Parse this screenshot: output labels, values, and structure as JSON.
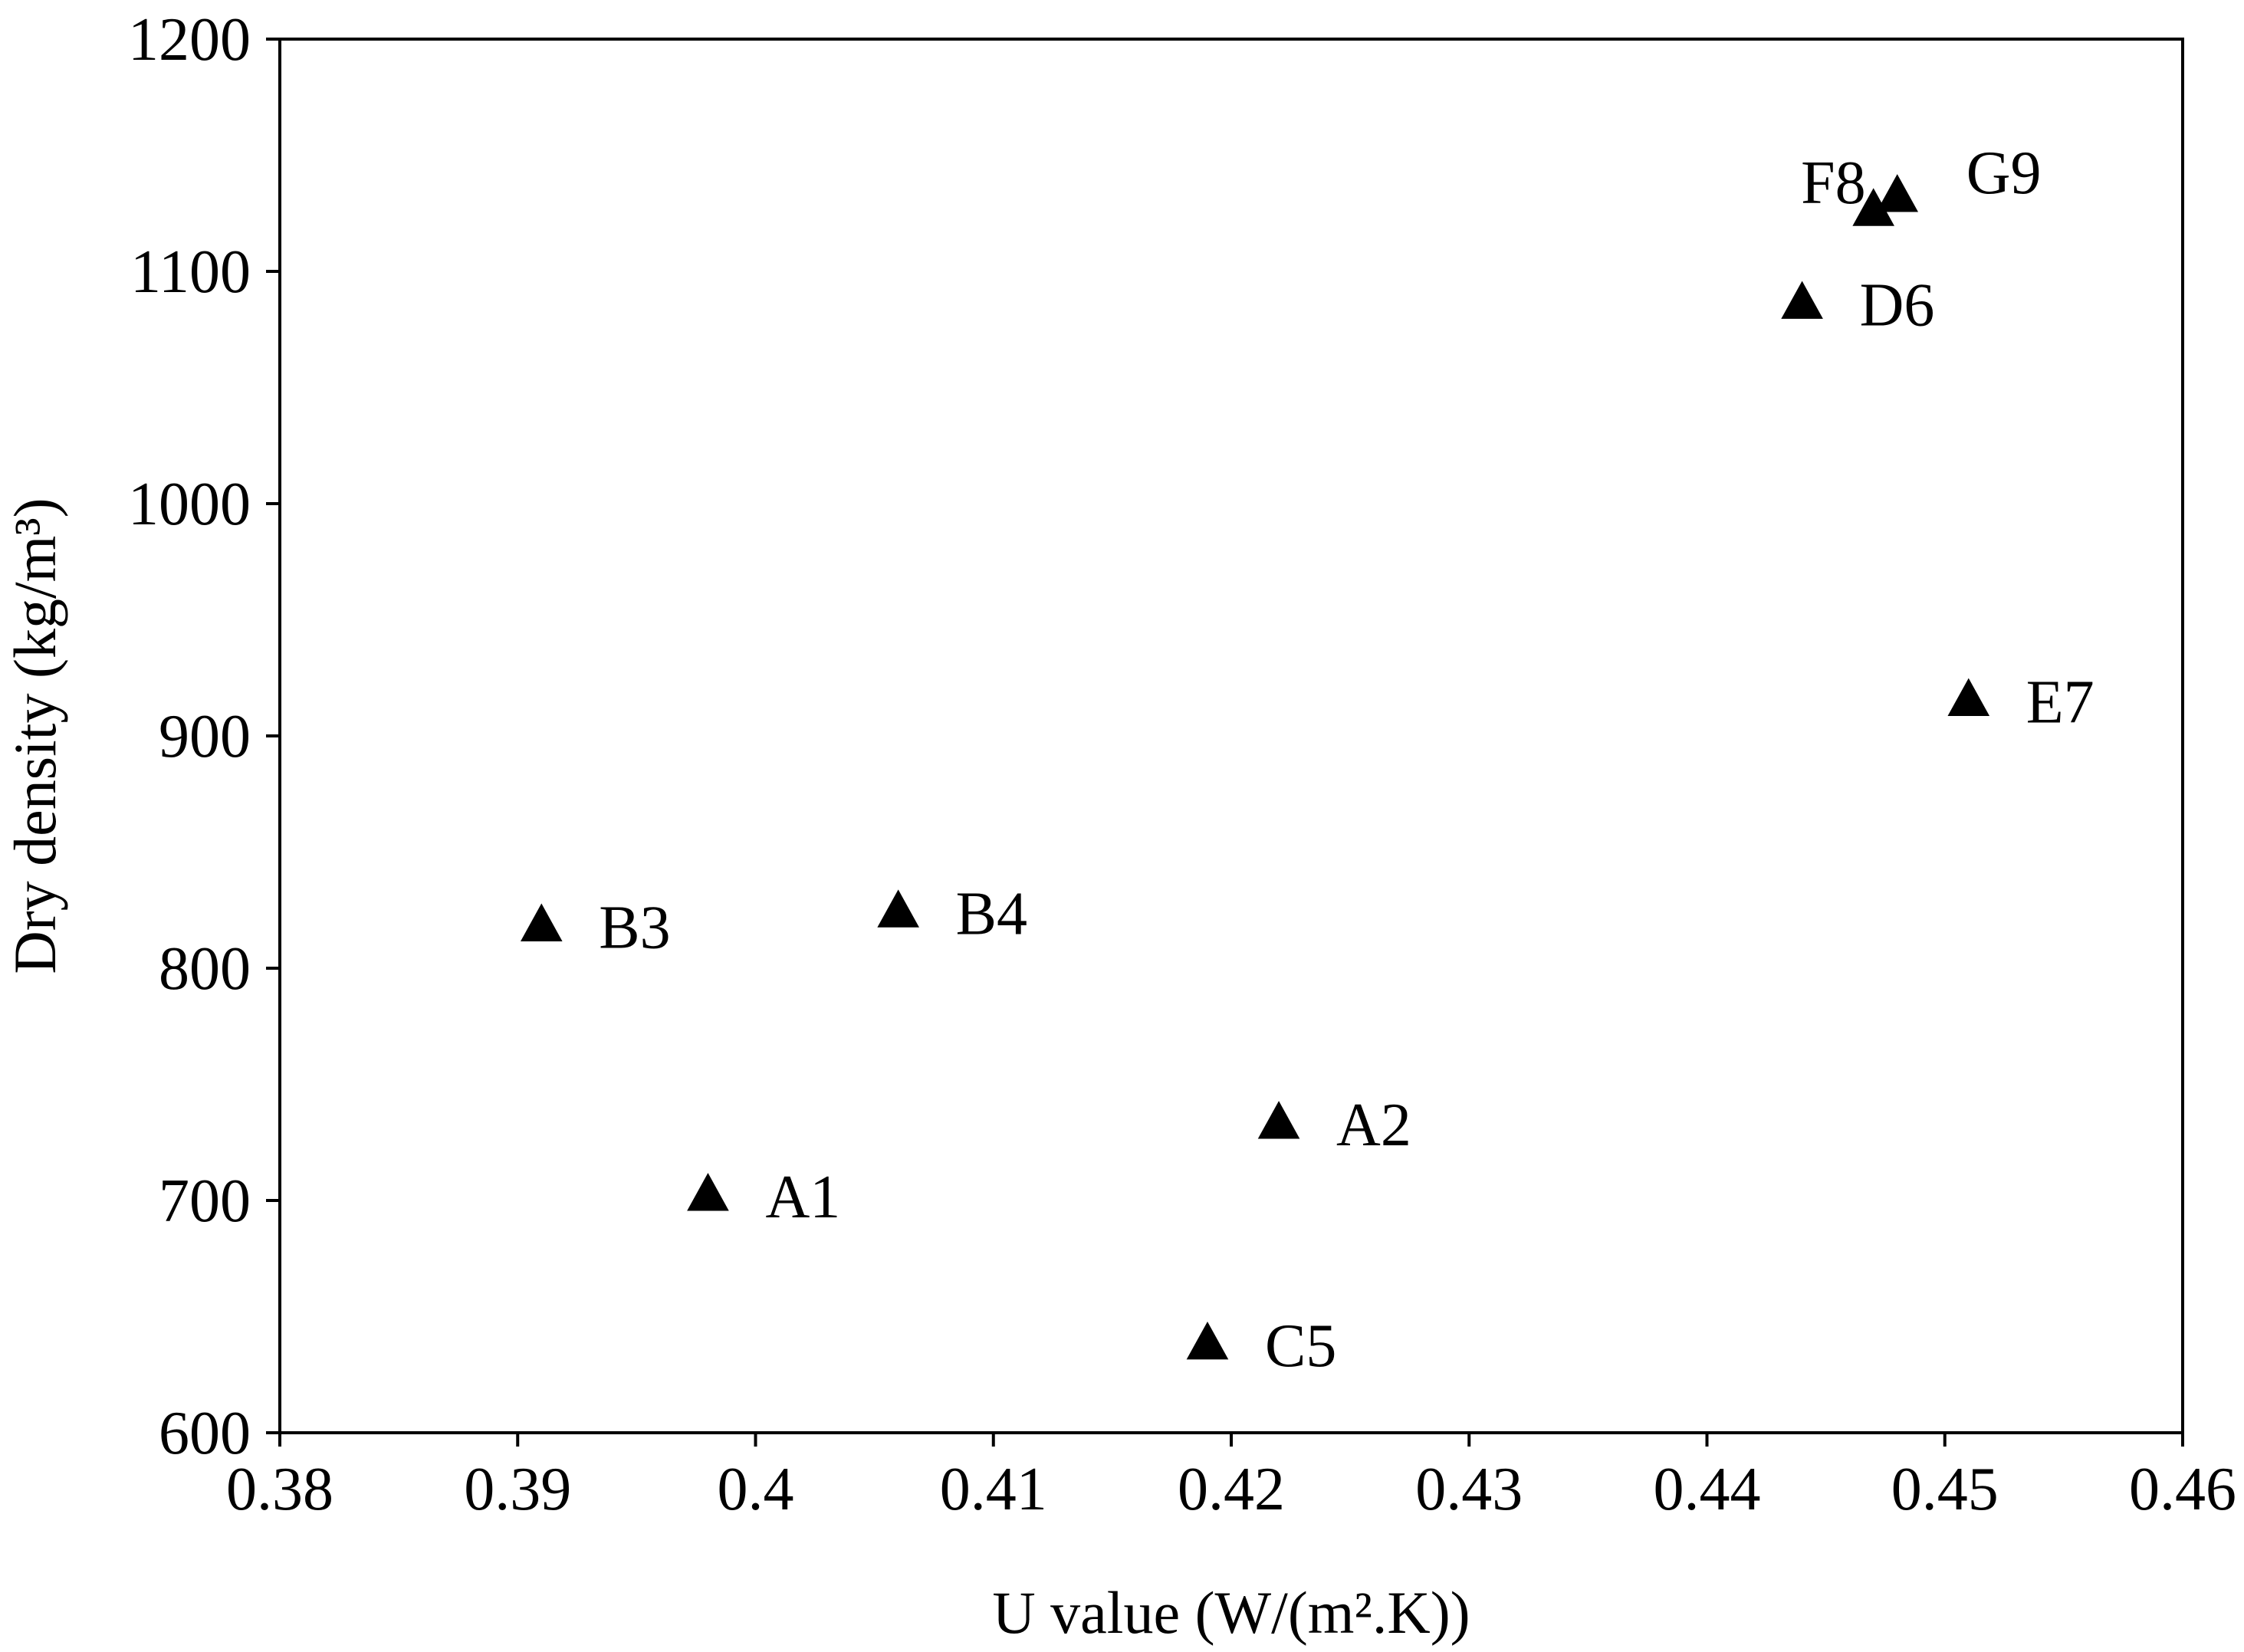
{
  "chart_data": {
    "type": "scatter",
    "xlabel": "U value (W/(m².K))",
    "ylabel": "Dry density (kg/m³)",
    "xlim": [
      0.38,
      0.46
    ],
    "ylim": [
      600,
      1200
    ],
    "xticks": [
      "0.38",
      "0.39",
      "0.4",
      "0.41",
      "0.42",
      "0.43",
      "0.44",
      "0.45",
      "0.46"
    ],
    "yticks": [
      "600",
      "700",
      "800",
      "900",
      "1000",
      "1100",
      "1200"
    ],
    "grid": false,
    "marker": "filled-triangle",
    "marker_color": "#000000",
    "points": [
      {
        "label": "A1",
        "x": 0.398,
        "y": 702
      },
      {
        "label": "A2",
        "x": 0.422,
        "y": 733
      },
      {
        "label": "B3",
        "x": 0.391,
        "y": 818
      },
      {
        "label": "B4",
        "x": 0.406,
        "y": 824
      },
      {
        "label": "C5",
        "x": 0.419,
        "y": 638
      },
      {
        "label": "D6",
        "x": 0.444,
        "y": 1086
      },
      {
        "label": "E7",
        "x": 0.451,
        "y": 915
      },
      {
        "label": "F8",
        "x": 0.447,
        "y": 1126
      },
      {
        "label": "G9",
        "x": 0.448,
        "y": 1132
      }
    ]
  }
}
